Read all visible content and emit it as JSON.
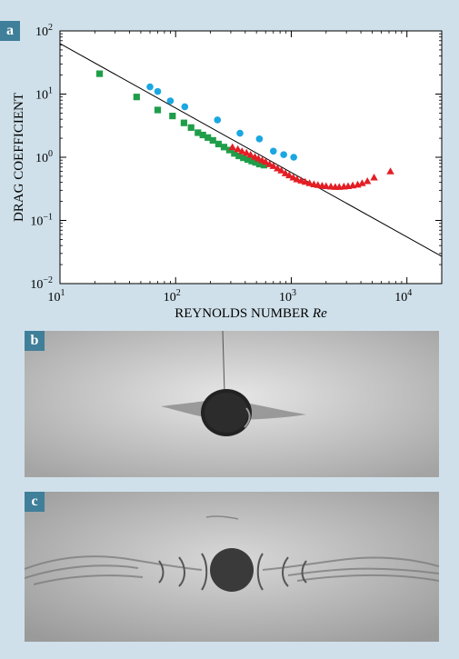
{
  "panels": {
    "a": "a",
    "b": "b",
    "c": "c"
  },
  "chart_data": {
    "type": "scatter",
    "xlabel": "REYNOLDS NUMBER",
    "xlabel_italic": "Re",
    "ylabel": "DRAG COEFFICIENT",
    "x_scale": "log",
    "y_scale": "log",
    "xlim": [
      10,
      20000
    ],
    "ylim": [
      0.01,
      100
    ],
    "grid": false,
    "x_ticks": [
      {
        "value": 10,
        "base": "10",
        "exp": "1"
      },
      {
        "value": 100,
        "base": "10",
        "exp": "2"
      },
      {
        "value": 1000,
        "base": "10",
        "exp": "3"
      },
      {
        "value": 10000,
        "base": "10",
        "exp": "4"
      }
    ],
    "y_ticks": [
      {
        "value": 0.01,
        "base": "10",
        "exp": "−2"
      },
      {
        "value": 0.1,
        "base": "10",
        "exp": "−1"
      },
      {
        "value": 1,
        "base": "10",
        "exp": "0"
      },
      {
        "value": 10,
        "base": "10",
        "exp": "1"
      },
      {
        "value": 100,
        "base": "10",
        "exp": "2"
      }
    ],
    "line": {
      "type": "power-law",
      "points": [
        [
          10,
          63
        ],
        [
          20000,
          0.027
        ]
      ],
      "color": "#000000"
    },
    "series": [
      {
        "marker": "circle",
        "color": "#1aa7e2",
        "points": [
          [
            60,
            13
          ],
          [
            70,
            11
          ],
          [
            90,
            7.8
          ],
          [
            120,
            6.3
          ],
          [
            230,
            3.9
          ],
          [
            360,
            2.4
          ],
          [
            530,
            1.95
          ],
          [
            700,
            1.25
          ],
          [
            860,
            1.1
          ],
          [
            1050,
            1.0
          ]
        ]
      },
      {
        "marker": "square",
        "color": "#1f9e4a",
        "points": [
          [
            22,
            21
          ],
          [
            46,
            9.0
          ],
          [
            70,
            5.6
          ],
          [
            94,
            4.5
          ],
          [
            118,
            3.5
          ],
          [
            136,
            2.95
          ],
          [
            156,
            2.45
          ],
          [
            172,
            2.25
          ],
          [
            190,
            2.05
          ],
          [
            210,
            1.85
          ],
          [
            235,
            1.62
          ],
          [
            262,
            1.45
          ],
          [
            292,
            1.3
          ],
          [
            322,
            1.15
          ],
          [
            352,
            1.05
          ],
          [
            385,
            0.98
          ],
          [
            420,
            0.92
          ],
          [
            455,
            0.87
          ],
          [
            490,
            0.83
          ],
          [
            530,
            0.78
          ],
          [
            580,
            0.75
          ]
        ]
      },
      {
        "marker": "triangle",
        "color": "#e31e24",
        "points": [
          [
            310,
            1.45
          ],
          [
            345,
            1.35
          ],
          [
            375,
            1.25
          ],
          [
            410,
            1.18
          ],
          [
            445,
            1.1
          ],
          [
            485,
            1.02
          ],
          [
            520,
            0.96
          ],
          [
            560,
            0.9
          ],
          [
            600,
            0.85
          ],
          [
            650,
            0.78
          ],
          [
            700,
            0.73
          ],
          [
            760,
            0.67
          ],
          [
            820,
            0.62
          ],
          [
            890,
            0.56
          ],
          [
            960,
            0.52
          ],
          [
            1040,
            0.48
          ],
          [
            1120,
            0.45
          ],
          [
            1220,
            0.43
          ],
          [
            1320,
            0.41
          ],
          [
            1440,
            0.39
          ],
          [
            1570,
            0.375
          ],
          [
            1700,
            0.365
          ],
          [
            1850,
            0.355
          ],
          [
            2000,
            0.35
          ],
          [
            2200,
            0.345
          ],
          [
            2400,
            0.34
          ],
          [
            2600,
            0.34
          ],
          [
            2850,
            0.345
          ],
          [
            3100,
            0.35
          ],
          [
            3400,
            0.36
          ],
          [
            3750,
            0.37
          ],
          [
            4100,
            0.39
          ],
          [
            4550,
            0.42
          ],
          [
            5200,
            0.48
          ],
          [
            7200,
            0.6
          ]
        ]
      }
    ]
  }
}
